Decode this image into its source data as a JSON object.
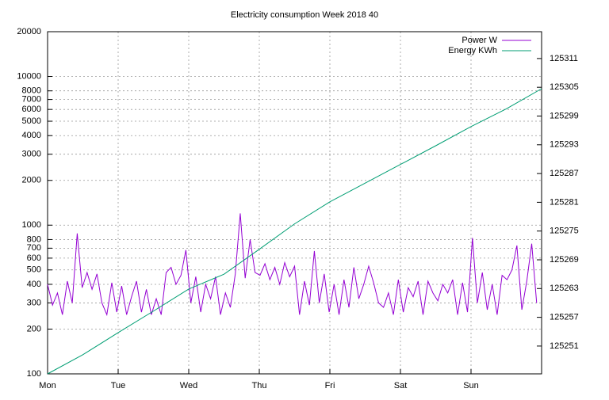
{
  "chart_data": {
    "type": "line",
    "title": "Electricity consumption Week 2018 40",
    "log_y": true,
    "grid": true,
    "legend": "top-right",
    "xlim": [
      0,
      7
    ],
    "xticks": [
      {
        "value": 0,
        "label": "Mon"
      },
      {
        "value": 1,
        "label": "Tue"
      },
      {
        "value": 2,
        "label": "Wed"
      },
      {
        "value": 3,
        "label": "Thu"
      },
      {
        "value": 4,
        "label": "Fri"
      },
      {
        "value": 5,
        "label": "Sat"
      },
      {
        "value": 6,
        "label": "Sun"
      }
    ],
    "ylim": [
      100,
      20000
    ],
    "yticks": [
      100,
      200,
      300,
      400,
      500,
      600,
      700,
      800,
      1000,
      2000,
      3000,
      4000,
      5000,
      6000,
      7000,
      8000,
      10000,
      20000
    ],
    "y2lim": [
      125245.2,
      125316.6
    ],
    "y2ticks": [
      125251,
      125257,
      125263,
      125269,
      125275,
      125281,
      125287,
      125293,
      125299,
      125305,
      125311
    ],
    "series": [
      {
        "name": "Power W",
        "color": "#9400d3",
        "x": [
          0,
          0.07,
          0.14,
          0.21,
          0.28,
          0.35,
          0.42,
          0.49,
          0.56,
          0.63,
          0.7,
          0.77,
          0.84,
          0.91,
          0.98,
          1.05,
          1.12,
          1.19,
          1.26,
          1.33,
          1.4,
          1.47,
          1.54,
          1.61,
          1.68,
          1.75,
          1.82,
          1.89,
          1.96,
          2.03,
          2.1,
          2.17,
          2.24,
          2.31,
          2.38,
          2.45,
          2.52,
          2.59,
          2.66,
          2.73,
          2.8,
          2.87,
          2.94,
          3.01,
          3.08,
          3.15,
          3.22,
          3.29,
          3.36,
          3.43,
          3.5,
          3.57,
          3.64,
          3.71,
          3.78,
          3.85,
          3.92,
          3.99,
          4.06,
          4.13,
          4.2,
          4.27,
          4.34,
          4.41,
          4.48,
          4.55,
          4.62,
          4.69,
          4.76,
          4.83,
          4.9,
          4.97,
          5.04,
          5.11,
          5.18,
          5.25,
          5.32,
          5.39,
          5.46,
          5.53,
          5.6,
          5.67,
          5.74,
          5.81,
          5.88,
          5.95,
          6.02,
          6.09,
          6.16,
          6.23,
          6.3,
          6.37,
          6.44,
          6.51,
          6.58,
          6.65,
          6.72,
          6.79,
          6.86,
          6.93
        ],
        "values": [
          400,
          290,
          350,
          250,
          420,
          300,
          880,
          380,
          480,
          370,
          470,
          300,
          250,
          410,
          260,
          390,
          250,
          330,
          420,
          260,
          370,
          250,
          320,
          250,
          480,
          520,
          400,
          460,
          680,
          300,
          450,
          260,
          400,
          320,
          450,
          250,
          350,
          280,
          470,
          1200,
          440,
          800,
          480,
          460,
          550,
          430,
          520,
          400,
          560,
          450,
          530,
          250,
          420,
          290,
          670,
          300,
          470,
          260,
          400,
          250,
          430,
          280,
          520,
          320,
          400,
          530,
          410,
          300,
          280,
          350,
          250,
          430,
          260,
          380,
          330,
          420,
          250,
          420,
          350,
          310,
          400,
          350,
          430,
          250,
          410,
          260,
          820,
          300,
          480,
          270,
          400,
          250,
          460,
          430,
          500,
          730,
          270,
          420,
          750,
          300
        ]
      },
      {
        "name": "Energy KWh",
        "color": "#009e73",
        "axis": "y2",
        "x": [
          0,
          0.5,
          1,
          1.5,
          2,
          2.5,
          3,
          3.5,
          4,
          4.5,
          5,
          5.5,
          6,
          6.5,
          7
        ],
        "values": [
          125245.2,
          125249.2,
          125253.8,
          125258.3,
          125262.9,
          125266.0,
          125271.2,
          125276.5,
          125281.1,
          125285.0,
          125288.9,
          125292.8,
          125296.8,
          125300.5,
          125304.7
        ]
      }
    ]
  }
}
